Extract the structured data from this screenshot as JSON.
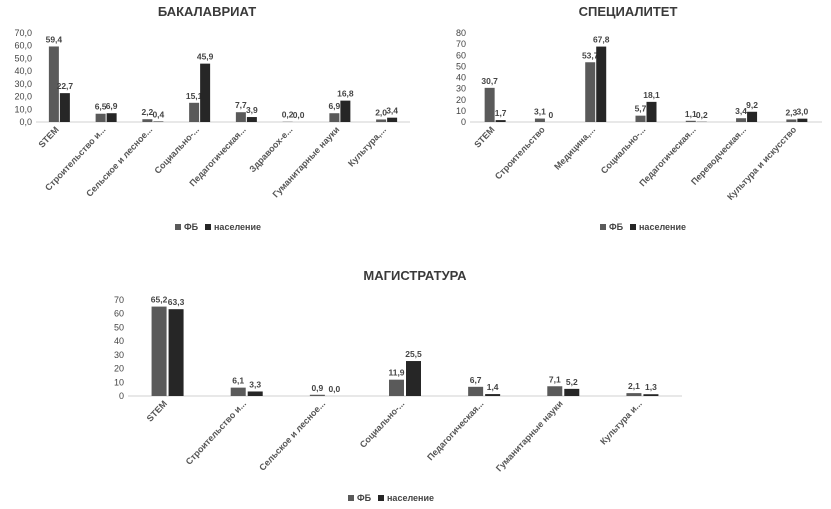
{
  "chart_data": [
    {
      "type": "bar",
      "title": "БАКАЛАВРИАТ",
      "categories": [
        "STEM",
        "Строительство и...",
        "Сельское и лесное...",
        "Социально-...",
        "Педагогическая...",
        "Здравоох-е...",
        "Гуманитарные науки",
        "Культура,..."
      ],
      "series": [
        {
          "name": "ФБ",
          "values": [
            59.4,
            6.5,
            2.2,
            15.1,
            7.7,
            0.2,
            6.9,
            2.0
          ],
          "labels": [
            "59,4",
            "6,5",
            "2,2",
            "15,1",
            "7,7",
            "0,2",
            "6,9",
            "2,0"
          ]
        },
        {
          "name": "население",
          "values": [
            22.7,
            6.9,
            0.4,
            45.9,
            3.9,
            0.0,
            16.8,
            3.4
          ],
          "labels": [
            "22,7",
            "6,9",
            "0,4",
            "45,9",
            "3,9",
            "0,0",
            "16,8",
            "3,4"
          ]
        }
      ],
      "yticks": [
        "0,0",
        "10,0",
        "20,0",
        "30,0",
        "40,0",
        "50,0",
        "60,0",
        "70,0"
      ],
      "ylim": [
        0,
        70
      ],
      "legend": "bottom"
    },
    {
      "type": "bar",
      "title": "СПЕЦИАЛИТЕТ",
      "categories": [
        "STEM",
        "Строительство",
        "Медицина,...",
        "Социально-...",
        "Педагогическая...",
        "Переводческая...",
        "Культура и искусство"
      ],
      "series": [
        {
          "name": "ФБ",
          "values": [
            30.7,
            3.1,
            53.7,
            5.7,
            1.1,
            3.4,
            2.3
          ],
          "labels": [
            "30,7",
            "3,1",
            "53,7",
            "5,7",
            "1,1",
            "3,4",
            "2,3"
          ]
        },
        {
          "name": "население",
          "values": [
            1.7,
            0,
            67.8,
            18.1,
            0.2,
            9.2,
            3.0
          ],
          "labels": [
            "1,7",
            "0",
            "67,8",
            "18,1",
            "0,2",
            "9,2",
            "3,0"
          ]
        }
      ],
      "yticks": [
        "0",
        "10",
        "20",
        "30",
        "40",
        "50",
        "60",
        "70",
        "80"
      ],
      "ylim": [
        0,
        80
      ],
      "legend": "bottom"
    },
    {
      "type": "bar",
      "title": "МАГИСТРАТУРА",
      "categories": [
        "STEM",
        "Строительство и...",
        "Сельское и лесное...",
        "Социально-...",
        "Педагогическая...",
        "Гуманитарные науки",
        "Культура и..."
      ],
      "series": [
        {
          "name": "ФБ",
          "values": [
            65.2,
            6.1,
            0.9,
            11.9,
            6.7,
            7.1,
            2.1
          ],
          "labels": [
            "65,2",
            "6,1",
            "0,9",
            "11,9",
            "6,7",
            "7,1",
            "2,1"
          ]
        },
        {
          "name": "население",
          "values": [
            63.3,
            3.3,
            0.0,
            25.5,
            1.4,
            5.2,
            1.3
          ],
          "labels": [
            "63,3",
            "3,3",
            "0,0",
            "25,5",
            "1,4",
            "5,2",
            "1,3"
          ]
        }
      ],
      "yticks": [
        "0",
        "10",
        "20",
        "30",
        "40",
        "50",
        "60",
        "70"
      ],
      "ylim": [
        0,
        70
      ],
      "legend": "bottom"
    }
  ],
  "colors": {
    "fb": "#5a5a5a",
    "population": "#262626",
    "axis": "#d0d0d0",
    "text": "#444444"
  }
}
